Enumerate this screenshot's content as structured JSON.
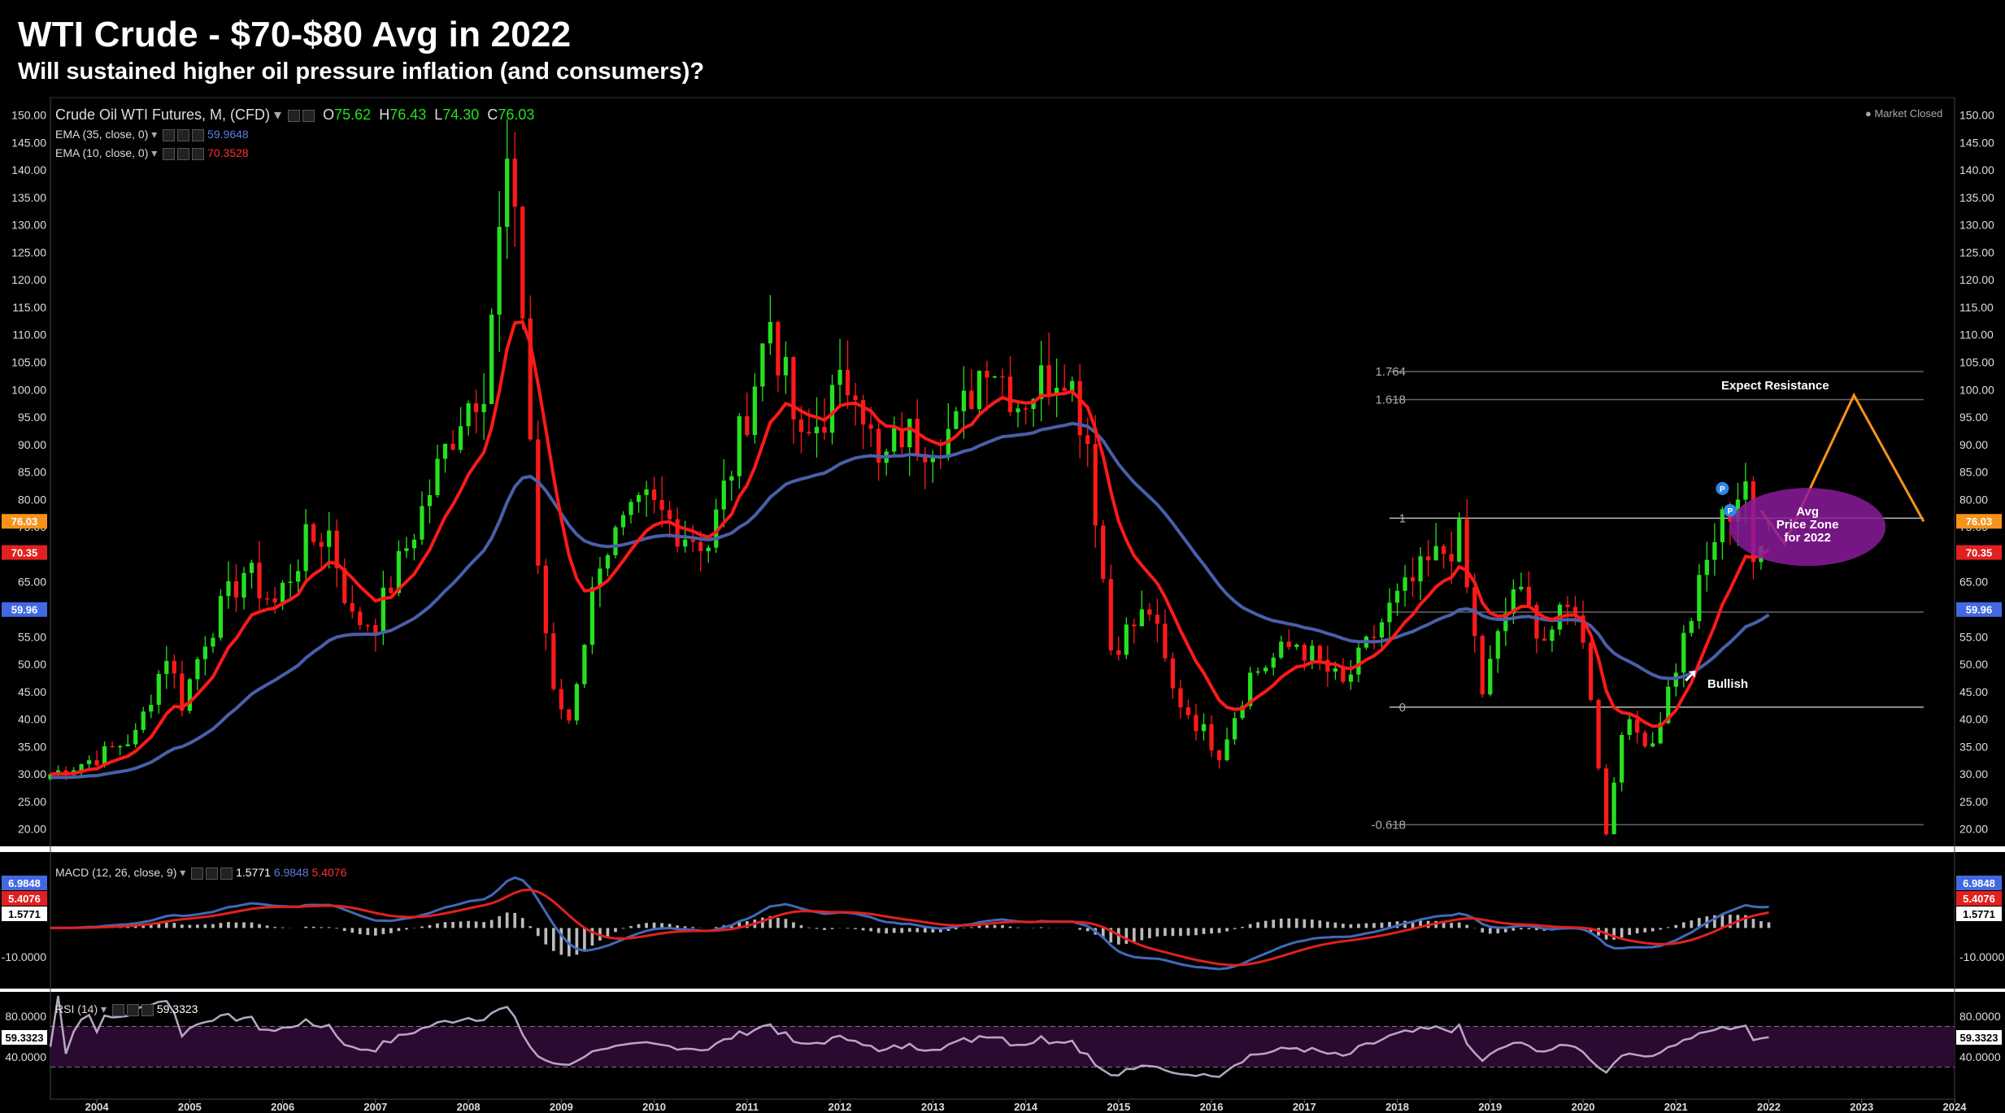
{
  "header": {
    "title": "WTI Crude - $70-$80 Avg in 2022",
    "subtitle": "Will sustained higher oil pressure inflation (and consumers)?"
  },
  "legend": {
    "symbol": "Crude Oil WTI Futures, M, (CFD)",
    "ohlc": {
      "o_label": "O",
      "o": "75.62",
      "h_label": "H",
      "h": "76.43",
      "l_label": "L",
      "l": "74.30",
      "c_label": "C",
      "c": "76.03"
    },
    "ema35": {
      "label": "EMA (35, close, 0)",
      "value": "59.9648"
    },
    "ema10": {
      "label": "EMA (10, close, 0)",
      "value": "70.3528"
    },
    "market_status": "Market Closed"
  },
  "colors": {
    "up": "#26e021",
    "down": "#ff1a1a",
    "ema_fast": "#ff1a1a",
    "ema_slow": "#4a5fa8",
    "price_badge": "#f7931a",
    "macd_line": "#4169b8",
    "signal_line": "#e0211f",
    "rsi_band": "#2a0a30",
    "rsi_line": "#b8a6c4",
    "oval": "#8b1a9b",
    "projection": "#f7931a"
  },
  "price_axis": {
    "ticks": [
      "150.00",
      "145.00",
      "140.00",
      "135.00",
      "130.00",
      "125.00",
      "120.00",
      "115.00",
      "110.00",
      "105.00",
      "100.00",
      "95.00",
      "90.00",
      "85.00",
      "80.00",
      "75.00",
      "70.00",
      "65.00",
      "60.00",
      "55.00",
      "50.00",
      "45.00",
      "40.00",
      "35.00",
      "30.00",
      "25.00",
      "20.00"
    ],
    "badges": {
      "close": "76.03",
      "ema10": "70.35",
      "ema35": "59.96"
    }
  },
  "fib_levels": [
    {
      "label": "1.764",
      "price": 103.3
    },
    {
      "label": "1.618",
      "price": 98.2
    },
    {
      "label": "1",
      "price": 76.6
    },
    {
      "label": "",
      "price": 59.5
    },
    {
      "label": "0",
      "price": 42.2
    },
    {
      "label": "-0.618",
      "price": 20.8
    }
  ],
  "annotations": {
    "resistance": "Expect Resistance",
    "bullish": "Bullish",
    "zone": "Avg\nPrice Zone\nfor 2022",
    "marker": "P"
  },
  "macd": {
    "label": "MACD (12, 26, close, 9)",
    "hist_value": "1.5771",
    "macd_value": "6.9848",
    "signal_value": "5.4076",
    "axis_tick": "-10.0000"
  },
  "rsi": {
    "label": "RSI (14)",
    "value": "59.3323",
    "axis_ticks": [
      "80.0000",
      "40.0000"
    ]
  },
  "time_axis": [
    "2004",
    "2005",
    "2006",
    "2007",
    "2008",
    "2009",
    "2010",
    "2011",
    "2012",
    "2013",
    "2014",
    "2015",
    "2016",
    "2017",
    "2018",
    "2019",
    "2020",
    "2021",
    "2022",
    "2023",
    "2024"
  ],
  "chart_data": {
    "type": "candlestick",
    "title": "WTI Crude - $70-$80 Avg in 2022",
    "subtitle": "Will sustained higher oil pressure inflation (and consumers)?",
    "interval": "monthly",
    "ylim": [
      17,
      152
    ],
    "x_range": [
      "2003-07",
      "2024-01"
    ],
    "close_anchors": [
      [
        "2003-07",
        30
      ],
      [
        "2004-01",
        33
      ],
      [
        "2004-06",
        37
      ],
      [
        "2004-10",
        52
      ],
      [
        "2004-12",
        43
      ],
      [
        "2005-03",
        55
      ],
      [
        "2005-08",
        67
      ],
      [
        "2005-12",
        61
      ],
      [
        "2006-04",
        72
      ],
      [
        "2006-07",
        74
      ],
      [
        "2006-10",
        58
      ],
      [
        "2007-01",
        58
      ],
      [
        "2007-07",
        78
      ],
      [
        "2007-12",
        96
      ],
      [
        "2008-03",
        102
      ],
      [
        "2008-06",
        140
      ],
      [
        "2008-08",
        115
      ],
      [
        "2008-10",
        68
      ],
      [
        "2008-12",
        44
      ],
      [
        "2009-02",
        40
      ],
      [
        "2009-06",
        70
      ],
      [
        "2009-12",
        79
      ],
      [
        "2010-05",
        74
      ],
      [
        "2010-08",
        72
      ],
      [
        "2010-12",
        91
      ],
      [
        "2011-04",
        113
      ],
      [
        "2011-08",
        89
      ],
      [
        "2011-12",
        98
      ],
      [
        "2012-03",
        103
      ],
      [
        "2012-06",
        85
      ],
      [
        "2012-09",
        92
      ],
      [
        "2012-12",
        91
      ],
      [
        "2013-04",
        93
      ],
      [
        "2013-08",
        107
      ],
      [
        "2013-12",
        98
      ],
      [
        "2014-06",
        105
      ],
      [
        "2014-09",
        91
      ],
      [
        "2014-12",
        53
      ],
      [
        "2015-05",
        60
      ],
      [
        "2015-08",
        45
      ],
      [
        "2016-02",
        34
      ],
      [
        "2016-06",
        48
      ],
      [
        "2016-12",
        54
      ],
      [
        "2017-06",
        46
      ],
      [
        "2017-12",
        60
      ],
      [
        "2018-05",
        68
      ],
      [
        "2018-09",
        73
      ],
      [
        "2018-12",
        45
      ],
      [
        "2019-04",
        64
      ],
      [
        "2019-08",
        55
      ],
      [
        "2019-12",
        61
      ],
      [
        "2020-02",
        45
      ],
      [
        "2020-04",
        19
      ],
      [
        "2020-06",
        39
      ],
      [
        "2020-10",
        36
      ],
      [
        "2021-03",
        59
      ],
      [
        "2021-06",
        73
      ],
      [
        "2021-10",
        84
      ],
      [
        "2021-11",
        66
      ],
      [
        "2022-01",
        76
      ]
    ],
    "last_candle": {
      "open": 75.62,
      "high": 76.43,
      "low": 74.3,
      "close": 76.03
    },
    "ema35_last": 59.9648,
    "ema10_last": 70.3528,
    "projection": {
      "points": [
        [
          "2021-12",
          78
        ],
        [
          "2022-03",
          72
        ],
        [
          "2022-12",
          99
        ],
        [
          "2023-09",
          76
        ]
      ]
    },
    "avg_price_zone_2022": {
      "low": 70,
      "high": 80
    },
    "macd": {
      "macd_last": 6.9848,
      "signal_last": 5.4076,
      "hist_last": 1.5771
    },
    "rsi": {
      "last": 59.3323,
      "band": [
        30,
        70
      ]
    }
  }
}
